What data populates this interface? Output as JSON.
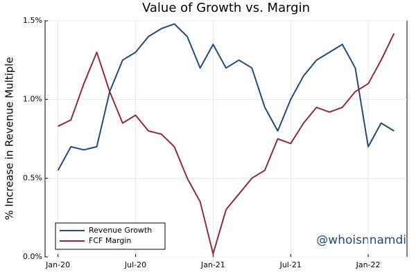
{
  "chart_data": {
    "type": "line",
    "title": "Value of Growth vs. Margin",
    "ylabel": "% Increase in Revenue Multiple",
    "annotation": "@whoisnnamdi",
    "x": [
      "2020-01",
      "2020-02",
      "2020-03",
      "2020-04",
      "2020-05",
      "2020-06",
      "2020-07",
      "2020-08",
      "2020-09",
      "2020-10",
      "2020-11",
      "2020-12",
      "2021-01",
      "2021-02",
      "2021-03",
      "2021-04",
      "2021-05",
      "2021-06",
      "2021-07",
      "2021-08",
      "2021-09",
      "2021-10",
      "2021-11",
      "2021-12",
      "2022-01",
      "2022-02",
      "2022-03"
    ],
    "series": [
      {
        "name": "Revenue Growth",
        "color": "#1f4a78",
        "values": [
          0.55,
          0.7,
          0.68,
          0.7,
          1.05,
          1.25,
          1.3,
          1.4,
          1.45,
          1.48,
          1.4,
          1.2,
          1.35,
          1.2,
          1.25,
          1.2,
          0.95,
          0.8,
          1.0,
          1.15,
          1.25,
          1.3,
          1.35,
          1.2,
          0.7,
          0.85,
          0.8
        ]
      },
      {
        "name": "FCF Margin",
        "color": "#8e2b35",
        "values": [
          0.83,
          0.87,
          1.1,
          1.3,
          1.05,
          0.85,
          0.9,
          0.8,
          0.78,
          0.7,
          0.5,
          0.35,
          0.02,
          0.3,
          0.4,
          0.5,
          0.55,
          0.75,
          0.72,
          0.85,
          0.95,
          0.92,
          0.95,
          1.05,
          1.1,
          1.25,
          1.42
        ]
      }
    ],
    "xlim": [
      "2019-12",
      "2022-04"
    ],
    "xticks": [
      {
        "value": "2020-01",
        "label": "Jan-20"
      },
      {
        "value": "2020-07",
        "label": "Jul-20"
      },
      {
        "value": "2021-01",
        "label": "Jan-21"
      },
      {
        "value": "2021-07",
        "label": "Jul-21"
      },
      {
        "value": "2022-01",
        "label": "Jan-22"
      }
    ],
    "ylim": [
      0,
      1.5
    ],
    "yticks": [
      {
        "value": 0,
        "label": "0.0%"
      },
      {
        "value": 0.5,
        "label": "0.5%"
      },
      {
        "value": 1,
        "label": "1.0%"
      },
      {
        "value": 1.5,
        "label": "1.5%"
      }
    ],
    "grid": true,
    "legend": "lower left"
  }
}
